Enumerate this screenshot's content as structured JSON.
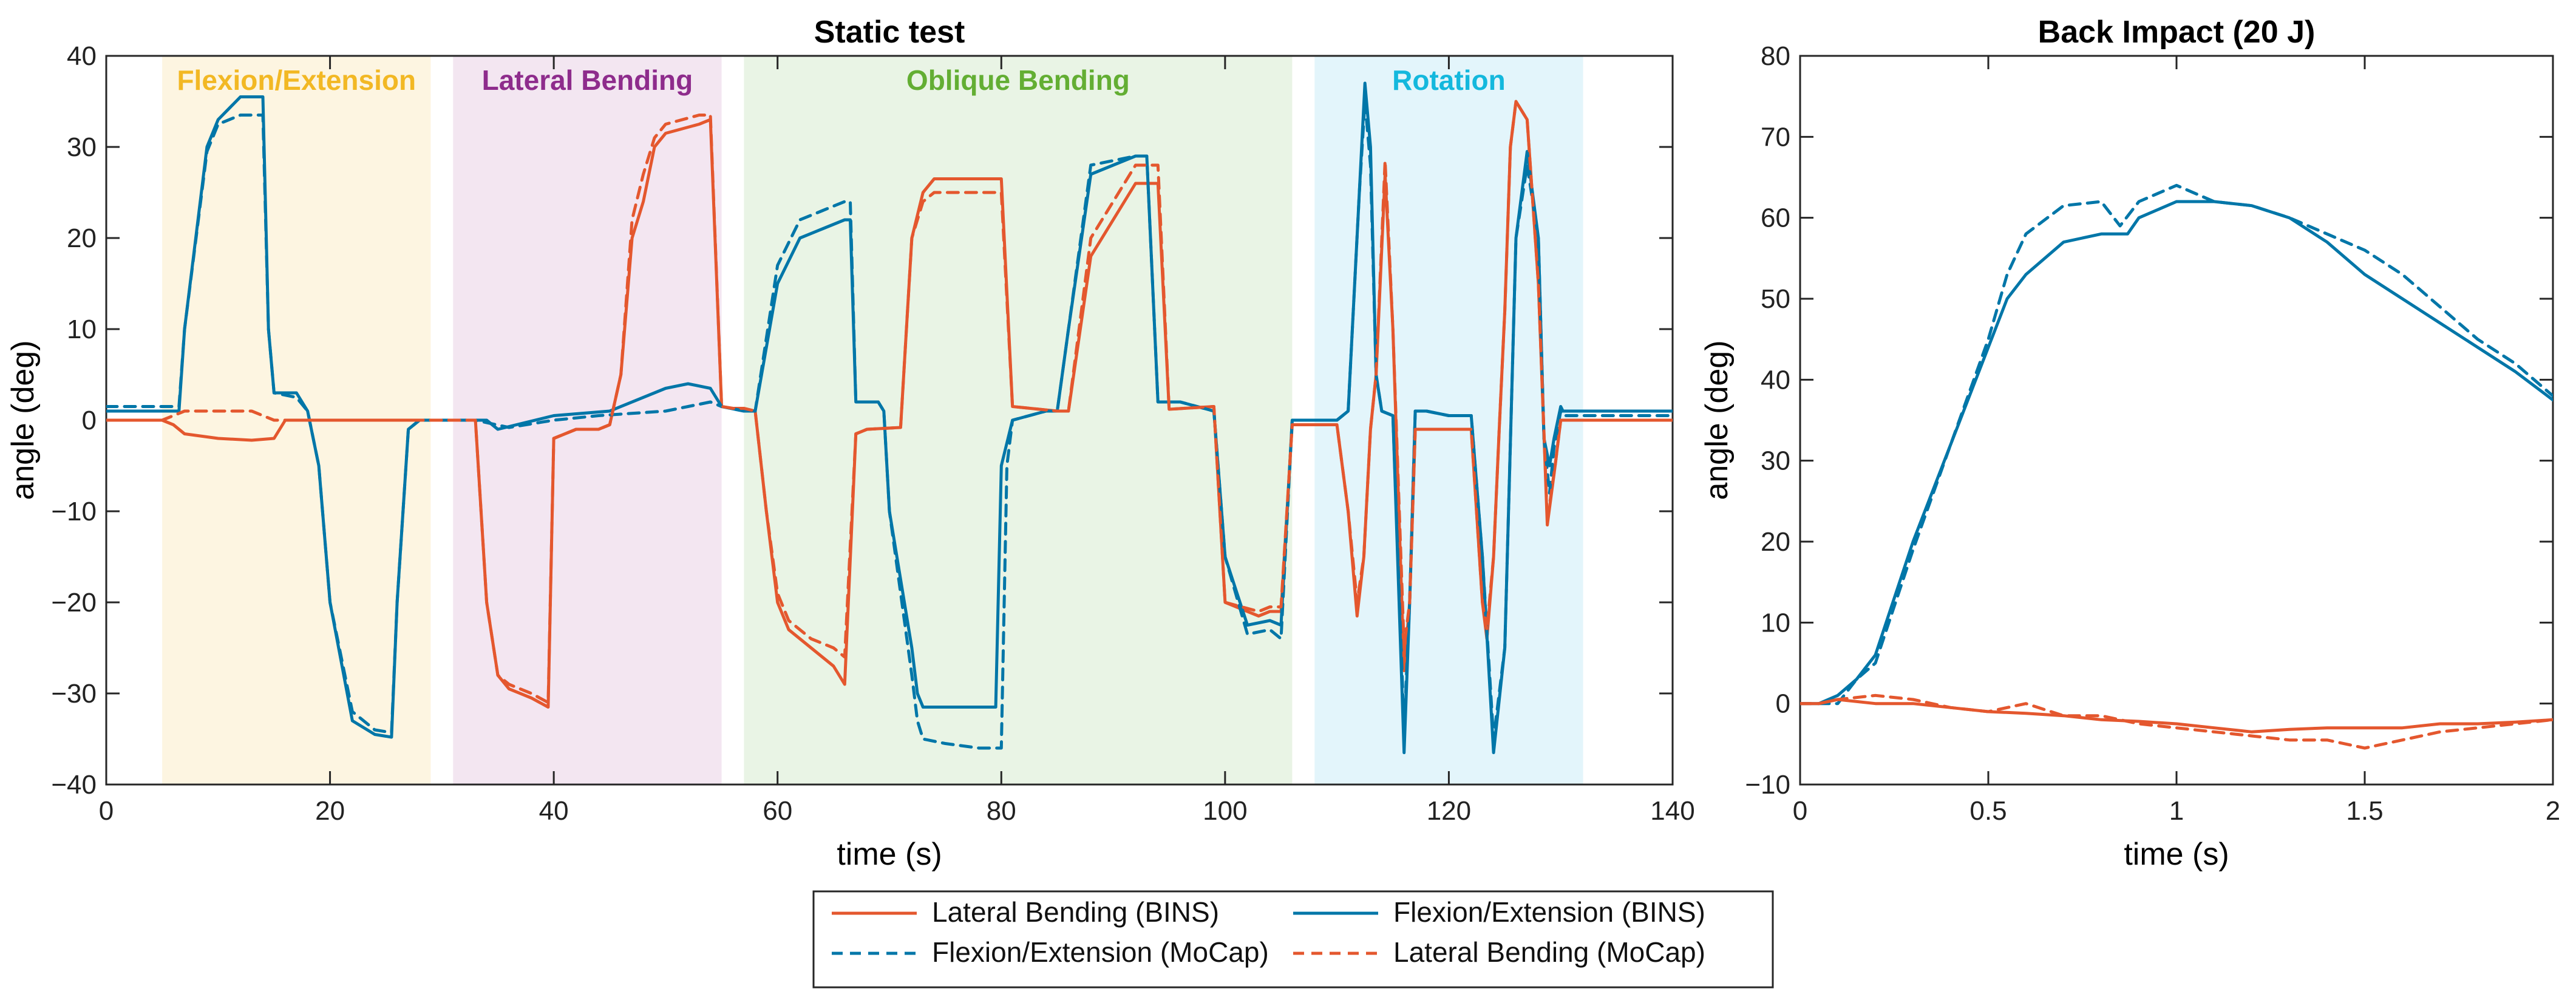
{
  "colors": {
    "orange": "#E4572E",
    "blue": "#0076A8",
    "region_fe": "#FDF5E1",
    "region_lb": "#F3E6F1",
    "region_ob": "#E9F4E5",
    "region_rot": "#E3F5FB",
    "label_fe": "#F2B824",
    "label_lb": "#8E2C8C",
    "label_ob": "#63AE33",
    "label_rot": "#14B8DD"
  },
  "legend": {
    "items": [
      {
        "label": "Lateral Bending (BINS)",
        "color": "orange",
        "dash": false
      },
      {
        "label": "Flexion/Extension (BINS)",
        "color": "blue",
        "dash": false
      },
      {
        "label": "Flexion/Extension (MoCap)",
        "color": "blue",
        "dash": true
      },
      {
        "label": "Lateral Bending (MoCap)",
        "color": "orange",
        "dash": true
      }
    ]
  },
  "chart_data": [
    {
      "type": "line",
      "title": "Static test",
      "xlabel": "time (s)",
      "ylabel": "angle (deg)",
      "xlim": [
        0,
        140
      ],
      "ylim": [
        -40,
        40
      ],
      "xticks": [
        0,
        20,
        40,
        60,
        80,
        100,
        120,
        140
      ],
      "yticks": [
        -40,
        -30,
        -20,
        -10,
        0,
        10,
        20,
        30,
        40
      ],
      "xtick_labels": [
        "0",
        "20",
        "40",
        "60",
        "80",
        "100",
        "120",
        "140"
      ],
      "ytick_labels": [
        "−40",
        "−30",
        "−20",
        "−10",
        "0",
        "10",
        "20",
        "30",
        "40"
      ],
      "regions": [
        {
          "label": "Flexion/Extension",
          "x0": 5,
          "x1": 29,
          "fill": "region_fe",
          "text": "label_fe"
        },
        {
          "label": "Lateral Bending",
          "x0": 31,
          "x1": 55,
          "fill": "region_lb",
          "text": "label_lb"
        },
        {
          "label": "Oblique Bending",
          "x0": 57,
          "x1": 106,
          "fill": "region_ob",
          "text": "label_ob"
        },
        {
          "label": "Rotation",
          "x0": 108,
          "x1": 132,
          "fill": "region_rot",
          "text": "label_rot"
        }
      ],
      "series": [
        {
          "name": "Lateral Bending (BINS)",
          "color": "orange",
          "dash": false,
          "x": [
            0,
            5,
            6,
            7,
            10,
            13,
            15,
            16,
            20,
            25,
            27,
            29,
            31,
            33,
            34,
            35,
            36,
            38,
            39.5,
            40,
            42,
            44,
            45,
            46,
            47,
            48,
            49,
            50,
            53,
            54,
            55,
            56,
            57,
            58,
            59,
            60,
            61,
            63,
            65,
            66,
            67,
            68,
            71,
            72,
            73,
            74,
            79,
            80,
            81,
            85,
            86,
            88,
            92,
            93,
            94,
            95,
            99,
            100,
            103,
            104,
            105,
            106,
            110,
            111,
            111.8,
            112.4,
            113,
            113.5,
            114.3,
            115,
            116,
            116.5,
            117,
            118,
            120,
            122,
            123,
            123.4,
            124,
            124.5,
            125,
            125.5,
            126,
            127,
            128,
            128.8,
            129.5,
            130,
            131,
            132,
            140
          ],
          "y": [
            0,
            0,
            -0.5,
            -1.5,
            -2,
            -2.2,
            -2,
            0,
            0,
            0,
            0,
            0,
            0,
            0,
            -20,
            -28,
            -29.5,
            -30.5,
            -31.5,
            -2,
            -1,
            -1,
            -0.5,
            5,
            20,
            24,
            30,
            31.5,
            32.5,
            33,
            1.5,
            1.3,
            1.3,
            1,
            -10,
            -20,
            -23,
            -25,
            -27,
            -29,
            -1.5,
            -1,
            -0.8,
            20,
            25,
            26.5,
            26.5,
            26.5,
            1.5,
            1,
            1,
            18,
            26,
            26,
            26,
            1.2,
            1.5,
            -20,
            -21.5,
            -21,
            -21,
            -0.5,
            -0.5,
            -10,
            -21.5,
            -15,
            -1,
            5,
            27,
            10,
            -27.5,
            -20,
            -1,
            -1,
            -1,
            -1,
            -20,
            -24,
            -15,
            -1,
            12,
            30,
            35,
            33,
            15,
            -11.5,
            -5,
            0,
            0,
            0,
            0
          ]
        },
        {
          "name": "Flexion/Extension (BINS)",
          "color": "blue",
          "dash": false,
          "x": [
            0,
            6.5,
            7,
            9,
            10,
            12,
            14,
            14.5,
            15,
            17,
            18,
            19,
            20,
            22,
            24,
            25.5,
            26,
            27,
            28,
            31,
            34,
            35,
            40,
            45,
            50,
            52,
            54,
            55,
            57,
            58,
            60,
            62,
            64,
            66,
            66.5,
            67,
            69,
            69.5,
            70,
            72,
            72.5,
            73,
            75,
            78,
            79.5,
            80,
            81,
            84,
            85,
            86,
            88,
            92,
            93,
            94,
            96,
            99,
            100,
            102,
            104,
            105,
            106,
            110,
            111,
            112,
            112.5,
            113,
            113.5,
            114,
            115,
            116,
            116.5,
            117,
            118,
            120,
            122,
            123,
            124,
            125,
            126,
            127,
            128,
            128.5,
            129,
            129.4,
            130,
            130.2,
            131,
            132,
            140
          ],
          "y": [
            1,
            1,
            10,
            30,
            33,
            35.5,
            35.5,
            10,
            3,
            3,
            1,
            -5,
            -20,
            -33,
            -34.5,
            -34.8,
            -20,
            -1,
            0,
            0,
            0,
            -1,
            0.5,
            1,
            3.5,
            4,
            3.5,
            1.5,
            1,
            1,
            15,
            20,
            21,
            22,
            22,
            2,
            2,
            1,
            -10,
            -25,
            -30,
            -31.5,
            -31.5,
            -31.5,
            -31.5,
            -5,
            0,
            1,
            1,
            10,
            27,
            29,
            29,
            2,
            2,
            1,
            -15,
            -22.5,
            -22,
            -22.5,
            0,
            0,
            1,
            25,
            37,
            30,
            5,
            1,
            0.5,
            -36.5,
            -20,
            1,
            1,
            0.5,
            0.5,
            -15,
            -36.5,
            -25,
            20,
            29.5,
            20,
            -2,
            -5,
            -2,
            1.5,
            1,
            1,
            1,
            1
          ]
        },
        {
          "name": "Flexion/Extension (MoCap)",
          "color": "blue",
          "dash": true,
          "x": [
            0,
            6.5,
            7,
            9,
            10,
            12,
            14,
            14.5,
            15,
            17,
            18,
            19,
            20,
            22,
            24,
            25.5,
            26,
            27,
            28,
            31,
            33,
            36,
            40,
            44,
            50,
            52,
            54,
            55,
            57,
            58,
            60,
            62,
            64,
            66,
            66.5,
            67,
            69,
            69.5,
            70,
            72,
            72.5,
            73,
            75,
            78,
            80,
            80.5,
            81,
            84,
            85,
            86,
            88,
            92,
            93,
            94,
            96,
            99,
            100,
            102,
            104,
            105,
            106,
            110,
            111,
            112,
            112.5,
            113,
            113.5,
            114,
            115,
            116,
            116.5,
            117,
            118,
            120,
            122,
            123,
            124,
            125,
            126,
            127,
            128,
            128.5,
            129,
            129.4,
            130,
            130.2,
            131,
            132,
            140
          ],
          "y": [
            1.5,
            1.5,
            10,
            29.5,
            32.5,
            33.5,
            33.5,
            10,
            3,
            2.5,
            1,
            -5,
            -20,
            -32,
            -34,
            -34.3,
            -20,
            -1,
            0,
            0,
            0,
            -0.8,
            0,
            0.5,
            1,
            1.5,
            2,
            1.5,
            1,
            1,
            17,
            22,
            23,
            24,
            24,
            2,
            2,
            1,
            -10,
            -28,
            -33,
            -35,
            -35.5,
            -36,
            -36,
            -5,
            0,
            1,
            1,
            10,
            28,
            29,
            29,
            2,
            2,
            1,
            -15,
            -23.5,
            -23,
            -24,
            0,
            0,
            1,
            25,
            35,
            28,
            5,
            1,
            0.5,
            -34,
            -20,
            1,
            1,
            0.5,
            0.5,
            -15,
            -35,
            -25,
            20,
            28,
            20,
            -2,
            -8,
            -3,
            1,
            0.5,
            0.5,
            0.5,
            0.5
          ]
        },
        {
          "name": "Lateral Bending (MoCap)",
          "color": "orange",
          "dash": true,
          "x": [
            0,
            5,
            6,
            7,
            10,
            13,
            15,
            16,
            20,
            25,
            27,
            29,
            31,
            33,
            34,
            35,
            36,
            38,
            39.5,
            40,
            42,
            44,
            45,
            46,
            47,
            48,
            49,
            50,
            53,
            54,
            55,
            56,
            57,
            58,
            59,
            60,
            61,
            63,
            65,
            66,
            67,
            68,
            71,
            72,
            73,
            74,
            79,
            80,
            81,
            85,
            86,
            88,
            92,
            93,
            94,
            95,
            99,
            100,
            103,
            104,
            105,
            106,
            110,
            111,
            111.8,
            112.4,
            113,
            113.5,
            114.3,
            115,
            116,
            116.5,
            117,
            118,
            120,
            122,
            123,
            123.4,
            124,
            124.5,
            125,
            125.5,
            126,
            127,
            128,
            128.8,
            129.5,
            130,
            131,
            132,
            140
          ],
          "y": [
            0,
            0,
            0.5,
            1,
            1,
            1,
            0,
            0,
            0,
            0,
            0,
            0,
            0,
            0,
            -20,
            -28,
            -29,
            -30,
            -31,
            -2,
            -1,
            -1,
            -0.5,
            5,
            22,
            27,
            31,
            32.5,
            33.5,
            33.5,
            1.5,
            1.3,
            1.3,
            1,
            -10,
            -19,
            -22,
            -24,
            -25,
            -26,
            -1.5,
            -1,
            -0.8,
            20,
            24,
            25,
            25,
            25,
            1.5,
            1,
            1,
            20,
            28,
            28,
            28,
            1.2,
            1.5,
            -20,
            -21,
            -20.5,
            -20.5,
            -0.5,
            -0.5,
            -10,
            -20,
            -15,
            -1,
            5,
            28.5,
            10,
            -25,
            -20,
            -1,
            -1,
            -1,
            -1,
            -20,
            -23,
            -15,
            -1,
            12,
            30,
            35,
            33,
            15,
            -11,
            -5,
            0,
            0,
            0,
            0
          ]
        }
      ]
    },
    {
      "type": "line",
      "title": "Back Impact (20 J)",
      "xlabel": "time (s)",
      "ylabel": "angle (deg)",
      "xlim": [
        0,
        2
      ],
      "ylim": [
        -10,
        80
      ],
      "xticks": [
        0,
        0.5,
        1,
        1.5,
        2
      ],
      "yticks": [
        -10,
        0,
        10,
        20,
        30,
        40,
        50,
        60,
        70,
        80
      ],
      "xtick_labels": [
        "0",
        "0.5",
        "1",
        "1.5",
        "2"
      ],
      "ytick_labels": [
        "−10",
        "0",
        "10",
        "20",
        "30",
        "40",
        "50",
        "60",
        "70",
        "80"
      ],
      "series": [
        {
          "name": "Flexion/Extension (BINS)",
          "color": "blue",
          "dash": false,
          "x": [
            0,
            0.05,
            0.1,
            0.15,
            0.2,
            0.25,
            0.3,
            0.4,
            0.5,
            0.55,
            0.6,
            0.7,
            0.8,
            0.87,
            0.9,
            1.0,
            1.1,
            1.2,
            1.3,
            1.4,
            1.5,
            1.6,
            1.7,
            1.8,
            1.9,
            2.0
          ],
          "y": [
            0,
            0,
            1,
            3,
            6,
            13,
            20,
            32,
            44,
            50,
            53,
            57,
            58,
            58,
            60,
            62,
            62,
            61.5,
            60,
            57,
            53,
            50,
            47,
            44,
            41,
            37.5
          ]
        },
        {
          "name": "Flexion/Extension (MoCap)",
          "color": "blue",
          "dash": true,
          "x": [
            0,
            0.05,
            0.1,
            0.15,
            0.2,
            0.25,
            0.3,
            0.4,
            0.5,
            0.55,
            0.6,
            0.7,
            0.8,
            0.85,
            0.9,
            1.0,
            1.1,
            1.2,
            1.3,
            1.4,
            1.5,
            1.6,
            1.7,
            1.8,
            1.9,
            2.0
          ],
          "y": [
            0,
            0,
            0,
            3,
            5,
            12,
            19,
            32,
            45,
            53,
            58,
            61.5,
            62,
            59,
            62,
            64,
            62,
            61.5,
            60,
            58,
            56,
            53,
            49,
            45,
            42,
            38
          ]
        },
        {
          "name": "Lateral Bending (BINS)",
          "color": "orange",
          "dash": false,
          "x": [
            0,
            0.05,
            0.1,
            0.2,
            0.3,
            0.4,
            0.5,
            0.6,
            0.7,
            0.8,
            0.9,
            1.0,
            1.1,
            1.2,
            1.3,
            1.4,
            1.5,
            1.6,
            1.7,
            1.8,
            1.9,
            2.0
          ],
          "y": [
            0,
            0,
            0.5,
            0,
            0,
            -0.5,
            -1,
            -1.2,
            -1.5,
            -2,
            -2.2,
            -2.5,
            -3,
            -3.5,
            -3.2,
            -3,
            -3,
            -3,
            -2.5,
            -2.5,
            -2.3,
            -2
          ]
        },
        {
          "name": "Lateral Bending (MoCap)",
          "color": "orange",
          "dash": true,
          "x": [
            0,
            0.05,
            0.1,
            0.2,
            0.3,
            0.4,
            0.5,
            0.55,
            0.6,
            0.7,
            0.8,
            0.9,
            1.0,
            1.1,
            1.2,
            1.3,
            1.4,
            1.5,
            1.6,
            1.7,
            1.8,
            1.9,
            2.0
          ],
          "y": [
            0,
            0,
            0.5,
            1,
            0.5,
            -0.5,
            -1,
            -0.5,
            0,
            -1.5,
            -1.5,
            -2.5,
            -3,
            -3.5,
            -4,
            -4.5,
            -4.5,
            -5.5,
            -4.5,
            -3.5,
            -3,
            -2.5,
            -2
          ]
        }
      ]
    }
  ]
}
